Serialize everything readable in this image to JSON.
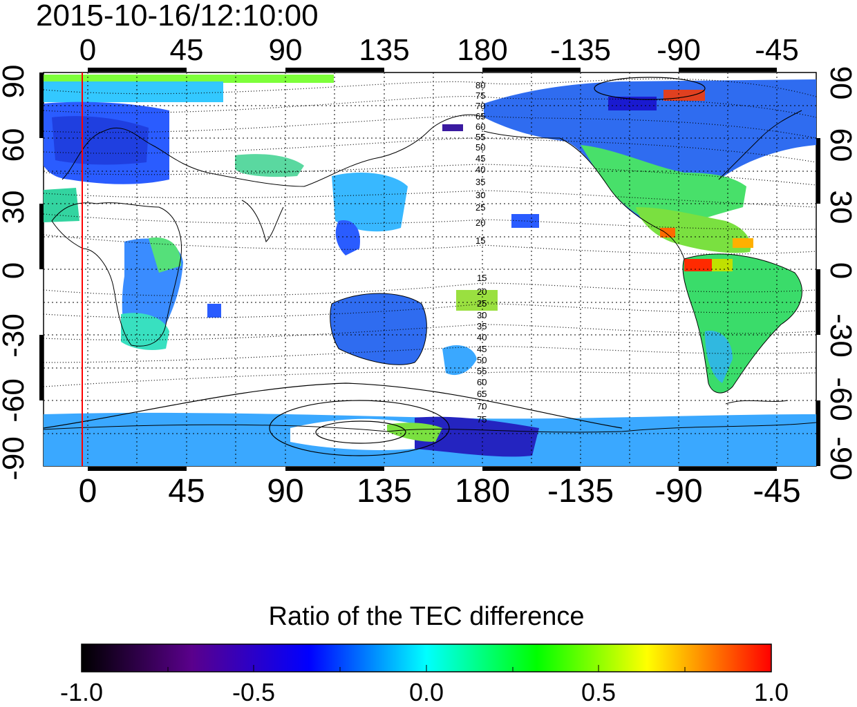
{
  "title": "2015-10-16/12:10:00",
  "top_axis_ticks": [
    "0",
    "45",
    "90",
    "135",
    "180",
    "-135",
    "-90",
    "-45"
  ],
  "bottom_axis_ticks": [
    "0",
    "45",
    "90",
    "135",
    "180",
    "-135",
    "-90",
    "-45"
  ],
  "left_axis_ticks": [
    "90",
    "60",
    "30",
    "0",
    "-30",
    "-60",
    "-90"
  ],
  "right_axis_ticks": [
    "90",
    "60",
    "30",
    "0",
    "-30",
    "-60",
    "-90"
  ],
  "contour_labels_north": [
    "80",
    "75",
    "70",
    "65",
    "60",
    "55",
    "50",
    "45",
    "40",
    "35",
    "30",
    "25",
    "20",
    "15"
  ],
  "contour_labels_south": [
    "15",
    "20",
    "25",
    "30",
    "35",
    "40",
    "45",
    "50",
    "55",
    "60",
    "65",
    "70",
    "75"
  ],
  "colorbar": {
    "title": "Ratio of the TEC difference",
    "ticks": [
      "-1.0",
      "-0.5",
      "0.0",
      "0.5",
      "1.0"
    ],
    "min": -1.0,
    "max": 1.0,
    "colors": [
      "#000000",
      "#5a008c",
      "#0000ff",
      "#00ffff",
      "#00ff00",
      "#ffff00",
      "#ff0000"
    ]
  },
  "map": {
    "lon_range": [
      -20,
      340
    ],
    "lat_range": [
      -90,
      90
    ],
    "red_meridian_lon": 0,
    "ocean_color": "#ffffff",
    "line_color": "#000000",
    "marker_color": "#ff0000"
  }
}
